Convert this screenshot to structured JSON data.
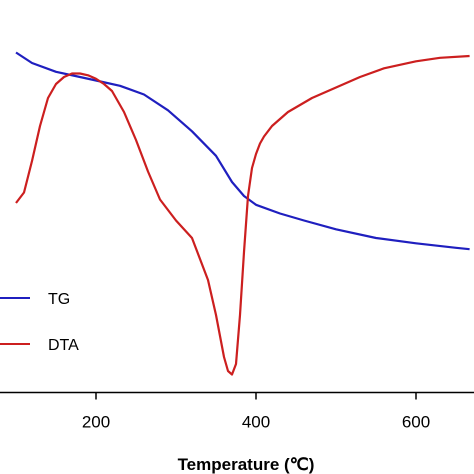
{
  "chart_data": {
    "type": "line",
    "xlabel": "Temperature (℃)",
    "ylabel": "",
    "title": "",
    "x_ticks": [
      200,
      400,
      600
    ],
    "grid": false,
    "legend_position": "left",
    "series": [
      {
        "name": "TG",
        "color": "#1f1fbf",
        "x": [
          100,
          120,
          150,
          180,
          200,
          230,
          260,
          290,
          320,
          350,
          370,
          385,
          400,
          430,
          460,
          500,
          550,
          600,
          650,
          667
        ],
        "y": [
          97.0,
          94.0,
          91.5,
          90.0,
          89.0,
          87.5,
          85.0,
          80.5,
          74.5,
          67.5,
          60.0,
          56.0,
          53.5,
          51.0,
          49.0,
          46.5,
          44.0,
          42.5,
          41.2,
          40.8
        ]
      },
      {
        "name": "DTA",
        "color": "#cc1f1f",
        "x": [
          100,
          110,
          120,
          130,
          140,
          150,
          160,
          170,
          180,
          190,
          200,
          210,
          220,
          235,
          250,
          265,
          280,
          300,
          320,
          340,
          350,
          360,
          365,
          370,
          375,
          380,
          385,
          390,
          395,
          400,
          405,
          410,
          420,
          440,
          470,
          500,
          530,
          560,
          600,
          630,
          667
        ],
        "y": [
          54,
          57,
          66,
          76,
          84,
          88,
          90,
          91,
          91,
          90.5,
          89.5,
          88,
          86,
          80,
          72,
          63,
          55,
          49,
          44,
          32,
          22,
          10,
          6,
          5,
          8,
          22,
          40,
          56,
          64,
          68,
          71,
          73,
          76,
          80,
          84,
          87,
          90,
          92.5,
          94.5,
          95.5,
          96
        ]
      }
    ]
  }
}
